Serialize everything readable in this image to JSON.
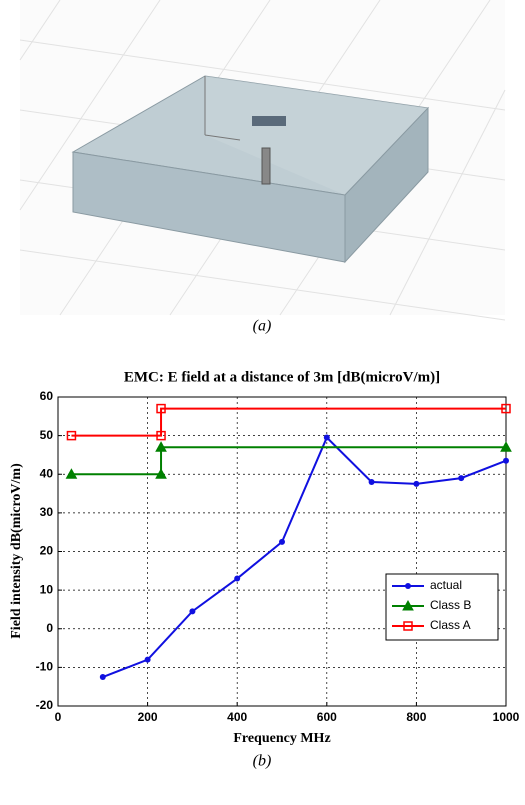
{
  "figure_a": {
    "caption": "(a)"
  },
  "chart_data": {
    "type": "line",
    "title": "EMC: E field at a distance of 3m [dB(microV/m)]",
    "x_label": "Frequency MHz",
    "y_label": "Field intensity dB(microV/m)",
    "caption": "(b)",
    "xlim": [
      0,
      1000
    ],
    "xticks": [
      0,
      200,
      400,
      600,
      800,
      1000
    ],
    "ylim": [
      -20,
      60
    ],
    "yticks": [
      -20,
      -10,
      0,
      10,
      20,
      30,
      40,
      50,
      60
    ],
    "grid": true,
    "legend": "lower right",
    "series": [
      {
        "name": "actual",
        "color": "#1010e0",
        "marker": "dot",
        "x": [
          100,
          200,
          300,
          400,
          500,
          600,
          700,
          800,
          900,
          1000
        ],
        "values": [
          -12.5,
          -8,
          4.5,
          13,
          22.5,
          49.5,
          38,
          37.5,
          39,
          43.5
        ]
      },
      {
        "name": "Class B",
        "color": "#008000",
        "marker": "triangle",
        "x": [
          30,
          230,
          230,
          1000
        ],
        "values": [
          40,
          40,
          47,
          47
        ]
      },
      {
        "name": "Class A",
        "color": "#ff0000",
        "marker": "square",
        "x": [
          30,
          230,
          230,
          1000
        ],
        "values": [
          50,
          50,
          57,
          57
        ]
      }
    ]
  }
}
